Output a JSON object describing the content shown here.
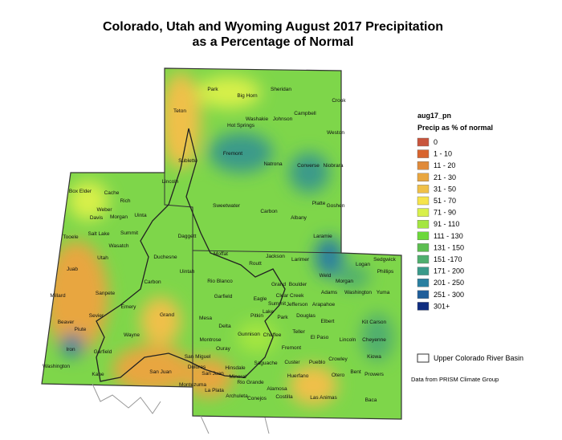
{
  "title": "Colorado, Utah and Wyoming August 2017 Precipitation",
  "subtitle": "as a Percentage of Normal",
  "legend": {
    "title": "aug17_pn",
    "subtitle": "Precip as % of normal",
    "items": [
      {
        "label": "0",
        "color": "#c8553d"
      },
      {
        "label": "1 - 10",
        "color": "#d8642e"
      },
      {
        "label": "11 - 20",
        "color": "#e08a3a"
      },
      {
        "label": "21 - 30",
        "color": "#e8a640"
      },
      {
        "label": "31 - 50",
        "color": "#f0c048"
      },
      {
        "label": "51 - 70",
        "color": "#f6e44a"
      },
      {
        "label": "71 - 90",
        "color": "#d8f04a"
      },
      {
        "label": "91 - 110",
        "color": "#a4e640"
      },
      {
        "label": "111 - 130",
        "color": "#6cd83a"
      },
      {
        "label": "131 - 150",
        "color": "#5cbe50"
      },
      {
        "label": "151 -170",
        "color": "#4fae6e"
      },
      {
        "label": "171 - 200",
        "color": "#3a9a8a"
      },
      {
        "label": "201 - 250",
        "color": "#2a7fa0"
      },
      {
        "label": "251 - 300",
        "color": "#1f5e9a"
      },
      {
        "label": "301+",
        "color": "#0f2d80"
      }
    ],
    "basin": "Upper Colorado River Basin"
  },
  "source": "Data from PRISM Climate Group",
  "places": [
    "Park",
    "Big Horn",
    "Sheridan",
    "Crook",
    "Teton",
    "Washakie",
    "Johnson",
    "Campbell",
    "Hot Springs",
    "Weston",
    "Fremont",
    "Natrona",
    "Converse",
    "Niobrara",
    "Sublette",
    "Lincoln",
    "Platte",
    "Goshen",
    "Box Elder",
    "Cache",
    "Rich",
    "Weber",
    "Morgan",
    "Davis",
    "Sweetwater",
    "Carbon",
    "Albany",
    "Uinta",
    "Laramie",
    "Summit",
    "Daggett",
    "Salt Lake",
    "Tooele",
    "Wasatch",
    "Utah",
    "Duchesne",
    "Moffat",
    "Jackson",
    "Larimer",
    "Weld",
    "Logan",
    "Sedgwick",
    "Phillips",
    "Juab",
    "Uintah",
    "Routt",
    "Grand",
    "Boulder",
    "Morgan",
    "Rio Blanco",
    "Carbon",
    "Sanpete",
    "Millard",
    "Garfield",
    "Eagle",
    "Summit",
    "Clear Creek",
    "Adams",
    "Washington",
    "Yuma",
    "Jefferson",
    "Arapahoe",
    "Emery",
    "Sevier",
    "Mesa",
    "Pitkin",
    "Lake",
    "Park",
    "Douglas",
    "Elbert",
    "Kit Carson",
    "Grand",
    "Beaver",
    "Piute",
    "Wayne",
    "Delta",
    "Gunnison",
    "Chaffee",
    "Teller",
    "El Paso",
    "Lincoln",
    "Cheyenne",
    "Iron",
    "Garfield",
    "Montrose",
    "Ouray",
    "Fremont",
    "Kiowa",
    "Washington",
    "San Miguel",
    "Hinsdale",
    "Saguache",
    "Custer",
    "Pueblo",
    "Crowley",
    "Dolores",
    "San Juan",
    "Mineral",
    "Huerfano",
    "Otero",
    "Bent",
    "Prowers",
    "Kane",
    "San Juan",
    "Montezuma",
    "Rio Grande",
    "Alamosa",
    "La Plata",
    "Archuleta",
    "Conejos",
    "Costilla",
    "Las Animas",
    "Baca"
  ]
}
